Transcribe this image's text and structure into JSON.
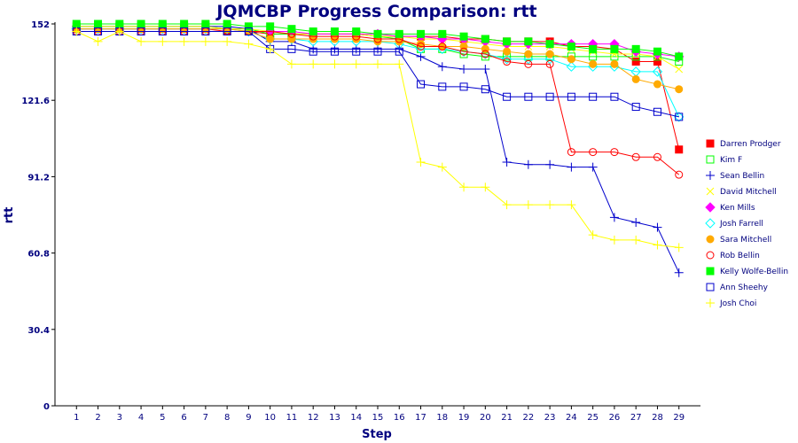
{
  "chart_data": {
    "type": "line",
    "title": "JQMCBP Progress Comparison: rtt",
    "xlabel": "Step",
    "ylabel": "rtt",
    "x": [
      1,
      2,
      3,
      4,
      5,
      6,
      7,
      8,
      9,
      10,
      11,
      12,
      13,
      14,
      15,
      16,
      17,
      18,
      19,
      20,
      21,
      22,
      23,
      24,
      25,
      26,
      27,
      28,
      29
    ],
    "ylim": [
      0,
      152
    ],
    "yticks": [
      "0",
      "30.4",
      "60.8",
      "91.2",
      "121.6",
      "152"
    ],
    "grid": false,
    "legend_position": "right",
    "series": [
      {
        "name": "Darren Prodger",
        "color": "#ff0000",
        "marker": "filled-square",
        "values": [
          150,
          150,
          150,
          150,
          150,
          150,
          150,
          149,
          149,
          148,
          148,
          148,
          148,
          148,
          147,
          147,
          147,
          147,
          146,
          146,
          145,
          145,
          145,
          143,
          143,
          142,
          137,
          137,
          102
        ]
      },
      {
        "name": "Kim F",
        "color": "#00ff00",
        "marker": "open-square",
        "values": [
          151,
          151,
          151,
          151,
          151,
          151,
          151,
          150,
          150,
          148,
          148,
          148,
          148,
          148,
          147,
          146,
          142,
          142,
          140,
          139,
          139,
          139,
          139,
          139,
          139,
          139,
          139,
          139,
          137
        ]
      },
      {
        "name": "Sean Bellin",
        "color": "#0000cc",
        "marker": "plus",
        "values": [
          151,
          151,
          151,
          151,
          151,
          151,
          151,
          151,
          150,
          145,
          145,
          142,
          142,
          142,
          142,
          142,
          139,
          135,
          134,
          134,
          97,
          96,
          96,
          95,
          95,
          75,
          73,
          71,
          53
        ]
      },
      {
        "name": "David Mitchell",
        "color": "#ffff00",
        "marker": "x",
        "values": [
          151,
          151,
          151,
          151,
          151,
          151,
          151,
          150,
          150,
          149,
          148,
          148,
          148,
          148,
          147,
          147,
          146,
          146,
          145,
          144,
          143,
          143,
          143,
          142,
          141,
          140,
          140,
          139,
          134
        ]
      },
      {
        "name": "Ken Mills",
        "color": "#ff00ff",
        "marker": "diamond",
        "values": [
          150,
          150,
          150,
          150,
          150,
          150,
          150,
          150,
          149,
          149,
          149,
          148,
          148,
          148,
          148,
          147,
          147,
          146,
          146,
          145,
          144,
          144,
          144,
          144,
          144,
          144,
          141,
          140,
          139
        ]
      },
      {
        "name": "Josh Farrell",
        "color": "#00ffff",
        "marker": "open-diamond",
        "values": [
          150,
          150,
          150,
          150,
          150,
          150,
          150,
          150,
          149,
          146,
          146,
          145,
          145,
          145,
          145,
          144,
          142,
          142,
          141,
          140,
          138,
          138,
          138,
          135,
          135,
          135,
          133,
          133,
          115
        ]
      },
      {
        "name": "Sara Mitchell",
        "color": "#ffaa00",
        "marker": "filled-circle",
        "values": [
          150,
          150,
          150,
          150,
          150,
          150,
          150,
          150,
          149,
          146,
          146,
          146,
          146,
          146,
          145,
          145,
          144,
          143,
          143,
          142,
          141,
          140,
          140,
          138,
          136,
          136,
          130,
          128,
          126
        ]
      },
      {
        "name": "Rob Bellin",
        "color": "#ff0000",
        "marker": "open-circle",
        "values": [
          149,
          149,
          149,
          149,
          149,
          149,
          149,
          149,
          149,
          149,
          148,
          147,
          147,
          147,
          146,
          146,
          143,
          143,
          141,
          140,
          137,
          136,
          136,
          101,
          101,
          101,
          99,
          99,
          92
        ]
      },
      {
        "name": "Kelly Wolfe-Bellin",
        "color": "#00ff00",
        "marker": "filled-square",
        "values": [
          152,
          152,
          152,
          152,
          152,
          152,
          152,
          152,
          151,
          151,
          150,
          149,
          149,
          149,
          148,
          148,
          148,
          148,
          147,
          146,
          145,
          145,
          144,
          143,
          142,
          142,
          142,
          141,
          139
        ]
      },
      {
        "name": "Ann Sheehy",
        "color": "#0000cc",
        "marker": "open-square",
        "values": [
          149,
          149,
          149,
          149,
          149,
          149,
          149,
          149,
          149,
          142,
          142,
          141,
          141,
          141,
          141,
          141,
          128,
          127,
          127,
          126,
          123,
          123,
          123,
          123,
          123,
          123,
          119,
          117,
          115
        ]
      },
      {
        "name": "Josh Choi",
        "color": "#ffff00",
        "marker": "plus",
        "values": [
          149,
          145,
          149,
          145,
          145,
          145,
          145,
          145,
          144,
          142,
          136,
          136,
          136,
          136,
          136,
          136,
          97,
          95,
          87,
          87,
          80,
          80,
          80,
          80,
          68,
          66,
          66,
          64,
          63
        ]
      }
    ]
  }
}
